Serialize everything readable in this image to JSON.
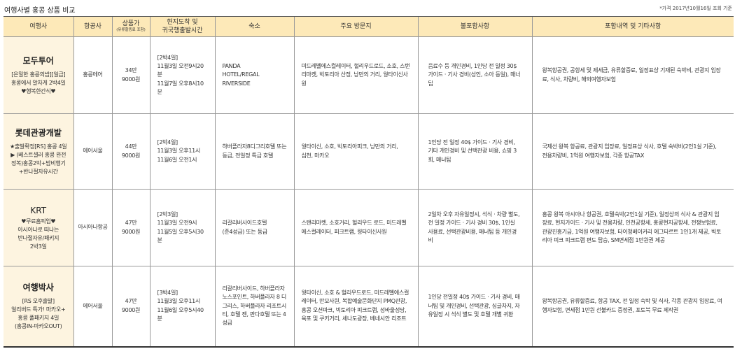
{
  "title": "여행사별 홍콩 상품 비교",
  "note": "*가격 2017년10월16일 조회 기준",
  "colors": {
    "header_bg": "#fde9b8",
    "agency_bg": "#fdf4e0"
  },
  "headers": {
    "agency": "여행사",
    "airline": "항공사",
    "price": "상품가",
    "price_sub": "(유류할증료 포함)",
    "times": "현지도착 및\n귀국행출발시간",
    "hotel": "숙소",
    "sights": "주요 방문지",
    "excluded": "불포함사항",
    "included": "포함내역 및 기타사항"
  },
  "rows": [
    {
      "agency": "모두투어",
      "desc": "[은밀한 홍콩의밤][일급]\n홍콩에서 알차게 2박4일\n♥행복한간식♥",
      "airline": "홍콩에어",
      "price": "34만\n9000원",
      "times": "[2박4일]\n11월3일 오전9시20분\n11월7일 오후8시10분",
      "hotel": "PANDA\nHOTEL/REGAL\nRIVERSIDE",
      "sights": "미드레벨에스컬레이터, 헐리우드로드, 소호, 스탠리마켓, 빅토리아 산정, 낭만의 거리, 웡타이신사원",
      "excluded": "음료수 등 개인경비, 1인당 전 일정 30$ 가이드 · 기사 경비(성인, 소아 동일), 매너팁",
      "included": "왕복항공권, 공항세 및 제세금, 유류할증료, 일정표상 기재된 숙박비, 관광지 입장료, 식사, 차량비, 해외여행자보험"
    },
    {
      "agency": "롯데관광개발",
      "desc": "★출발확정[RS] 홍콩 4일\n▶ (베스트셀러 홍콩 완전\n정복)홍콩2박+밤비행기\n+반나절자유시간",
      "airline": "에어서울",
      "price": "44만\n9000원",
      "times": "[2박4일]\n11월3일 오후11시\n11월6일 오전1시",
      "hotel": "하버플라자8디그리호텔 또는 동급, 전일정 특급 호텔",
      "sights": "웡타이신, 소호, 빅토리아피크, 낭만의 거리,\n심천, 마카오",
      "excluded": "1인당 전 일정 40$ 가이드 · 기사 경비, 기타 개인경비 및 선택관광 비용, 쇼핑 3회, 매너팁",
      "included": "국제선 왕복 항공료, 관광지 입장료, 일정표상 식사, 호텔 숙박비(2인1실 기준), 전용차량비, 1억원 여행자보험, 각종 항공TAX"
    },
    {
      "agency": "KRT",
      "desc": "♥무료홈픽업♥\n아시아나로 떠나는\n반나절자유/패키지\n2박3일",
      "airline": "아시아나항공",
      "price": "47만\n9000원",
      "times": "[2박3일]\n11월3일 오전9시\n11월5일 오후5시30분",
      "hotel": "리갈리버사이드호텔\n(준4성급) 또는 동급",
      "sights": "스탠리마켓, 소호거리, 헐리우드 로드, 미드레벨 에스컬레이터, 피크트램, 웡타이신사원",
      "excluded": "2일차 오후 자유일정시, 석식 · 차량 별도, 전 일정 가이드 · 기사 경비 30$, 1인실 사용료, 선택관광비용, 매너팁 등 개인경비",
      "included": "홍콩 왕복 아시아나 항공권, 호텔숙박(2인1실 기준), 일정상의 식사 & 관광지 입장료, 현지가이드 · 기사 및 전용차량, 인천공항세, 홍콩현지공항세, 전쟁보험료, 관광진흥기금, 1억원 여행자보험, 타이청베이커리 에그타르트 1인1개 제공, 빅토리아 피크 피크트램 편도 탑승, SM면세점 1만원권 제공"
    },
    {
      "agency": "여행박사",
      "desc": "[RS 오후출발]\n얼리버드 특가! 마카오+\n홍콩 풀패키지 4일\n(홍콩IN-마카오OUT)",
      "airline": "에어서울",
      "price": "47만\n9000원",
      "times": "[3박4일]\n11월3일 오후11시\n11월6일 오후5시40분",
      "hotel": "리갈리버사이드, 하버플라자 노스포인트, 하버플라자 8 디그리스, 하버플라자 리조트시티, 호텔 젠, 판다호텔 또는 4성급",
      "sights": "웡타이신, 소호 & 헐리우드로드, 미드레벨에스컬레이터, 만모사원, 복합예술문화단지 PMQ관광, 홍콩 오션파크, 빅토리아 피크트램, 성바울성당, 육포 및 쿠키거리, 세나도광장, 베네시안 리조트",
      "excluded": "1인당 전일정 40$ 가이드 · 기사 경비, 매너팁 및 개인경비, 선택관광, 싱글차지, 자유일정 시 석식 별도 및 호텔 개별 귀환",
      "included": "왕복항공권, 유류할증료, 항공 TAX, 전 일정 숙박 및 식사, 각종 관광지 입장료, 여행자보험, 면세점 1만원 선불카드 증정권, 포토북 무료 제작권"
    }
  ]
}
